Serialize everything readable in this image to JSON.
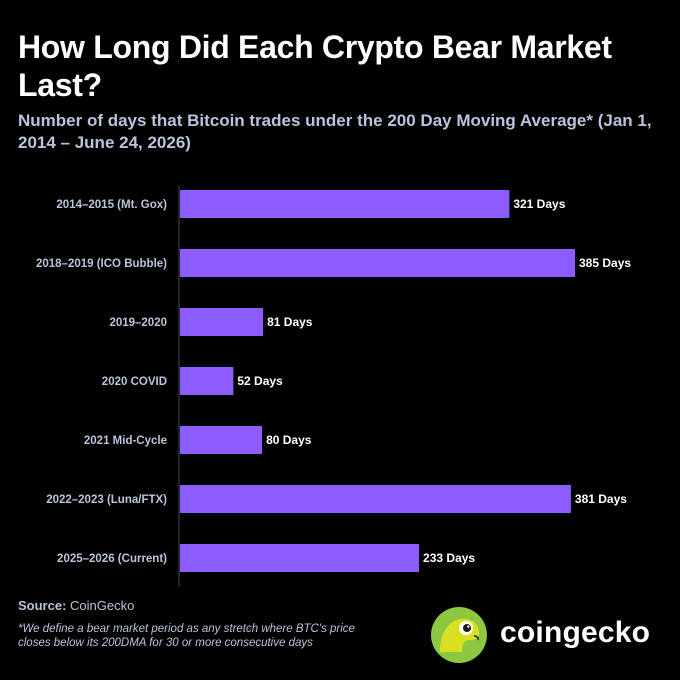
{
  "title": "How Long Did Each Crypto Bear Market Last?",
  "subtitle": "Number of days that Bitcoin trades under the 200 Day Moving Average* (Jan 1, 2014 – June 24, 2026)",
  "source_label": "Source:",
  "source_value": "CoinGecko",
  "footnote": "*We define a bear market period as any stretch where BTC's price closes below its 200DMA for 30 or more consecutive days",
  "brand": {
    "name": "coingecko",
    "logo_icon": "gecko-icon"
  },
  "colors": {
    "bar": "#8c5cff",
    "background": "#000000",
    "label": "#b9c4dc",
    "logo_circle": "#8dc63f"
  },
  "chart_data": {
    "type": "bar",
    "orientation": "horizontal",
    "title": "How Long Did Each Crypto Bear Market Last?",
    "subtitle": "Number of days that Bitcoin trades under the 200 Day Moving Average* (Jan 1, 2014 – June 24, 2026)",
    "categories": [
      "2014–2015 (Mt. Gox)",
      "2018–2019 (ICO Bubble)",
      "2019–2020",
      "2020 COVID",
      "2021 Mid-Cycle",
      "2022–2023 (Luna/FTX)",
      "2025–2026 (Current)"
    ],
    "values": [
      321,
      385,
      81,
      52,
      80,
      381,
      233
    ],
    "value_labels": [
      "321 Days",
      "385 Days",
      "81 Days",
      "52 Days",
      "80 Days",
      "381 Days",
      "233 Days"
    ],
    "xlim": [
      0,
      385
    ],
    "grid": false,
    "legend": "none"
  }
}
